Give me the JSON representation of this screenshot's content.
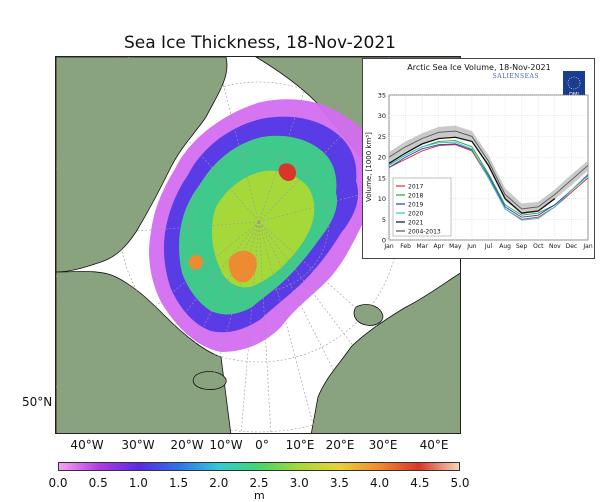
{
  "title": "Sea Ice Thickness, 18-Nov-2021",
  "lat_label": "50°N",
  "lon_labels": [
    "40°W",
    "30°W",
    "20°W",
    "10°W",
    "0°",
    "10°E",
    "20°E",
    "30°E",
    "40°E"
  ],
  "colorbar": {
    "unit": "m",
    "ticks": [
      "0.0",
      "0.5",
      "1.0",
      "1.5",
      "2.0",
      "2.5",
      "3.0",
      "3.5",
      "4.0",
      "4.5",
      "5.0"
    ],
    "colors": [
      "#f5a3f2",
      "#b23be3",
      "#5a28e6",
      "#2f74ea",
      "#33c9d6",
      "#44d66b",
      "#a5d93a",
      "#e8d23a",
      "#f08a2e",
      "#d9362a",
      "#f3d6b8"
    ]
  },
  "colors": {
    "land": "#8aa37f",
    "ocean": "#ffffff",
    "coast": "#111111"
  },
  "inset": {
    "title": "Arctic Sea Ice Volume, 18-Nov-2021",
    "brand": "SALIENSEAS",
    "logo_text": "DMI",
    "ylabel": "Volume, [1000 km³]",
    "legend": [
      "2017",
      "2018",
      "2019",
      "2020",
      "2021",
      "2004-2013"
    ]
  },
  "chart_data": {
    "type": "line",
    "title": "Arctic Sea Ice Volume, 18-Nov-2021",
    "xlabel": "",
    "ylabel": "Volume, [1000 km³]",
    "categories": [
      "Jan",
      "Feb",
      "Mar",
      "Apr",
      "May",
      "Jun",
      "Jul",
      "Aug",
      "Sep",
      "Oct",
      "Nov",
      "Dec",
      "Jan"
    ],
    "ylim": [
      0,
      35
    ],
    "yticks": [
      0,
      5,
      10,
      15,
      20,
      25,
      30,
      35
    ],
    "grid": true,
    "legend_position": "bottom-left",
    "series": [
      {
        "name": "2017",
        "color": "#e0312a",
        "values": [
          17.5,
          19.5,
          21.5,
          22.8,
          23.0,
          21.5,
          15.0,
          7.5,
          5.0,
          5.5,
          8.0,
          11.5,
          15.0
        ]
      },
      {
        "name": "2018",
        "color": "#2ca02c",
        "values": [
          18.0,
          20.5,
          22.5,
          23.8,
          24.0,
          22.5,
          16.0,
          8.5,
          6.0,
          6.5,
          8.5,
          12.0,
          15.5
        ]
      },
      {
        "name": "2019",
        "color": "#1f3fc4",
        "values": [
          17.5,
          20.0,
          22.0,
          23.0,
          23.2,
          21.8,
          15.5,
          8.0,
          5.5,
          6.0,
          8.5,
          12.0,
          15.8
        ]
      },
      {
        "name": "2020",
        "color": "#32c7c7",
        "values": [
          18.2,
          20.5,
          22.5,
          23.5,
          23.6,
          22.0,
          15.0,
          7.5,
          4.8,
          5.2,
          8.0,
          12.0,
          15.5
        ]
      },
      {
        "name": "2021",
        "color": "#111111",
        "values": [
          18.5,
          21.0,
          23.2,
          24.5,
          24.8,
          23.8,
          18.0,
          10.0,
          6.5,
          7.0,
          10.0,
          null,
          null
        ]
      },
      {
        "name": "2004-2013",
        "color": "#555555",
        "values": [
          20.0,
          22.5,
          24.5,
          26.0,
          26.3,
          25.0,
          19.0,
          11.0,
          7.5,
          8.0,
          11.0,
          14.5,
          18.0
        ]
      }
    ],
    "band": {
      "name": "2004-2013",
      "color": "#bdbdbd",
      "lower": [
        18.8,
        21.2,
        23.2,
        24.7,
        25.0,
        23.7,
        17.5,
        9.5,
        6.2,
        6.8,
        9.8,
        13.2,
        16.8
      ],
      "upper": [
        21.2,
        23.8,
        25.8,
        27.3,
        27.6,
        26.3,
        20.5,
        12.5,
        8.8,
        9.2,
        12.2,
        15.8,
        19.2
      ]
    }
  }
}
